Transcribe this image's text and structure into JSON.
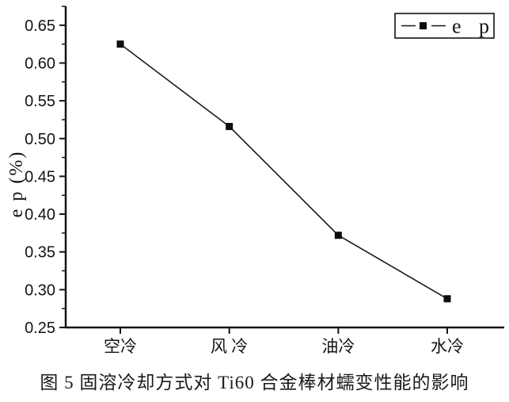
{
  "figure": {
    "caption": "图 5 固溶冷却方式对 Ti60 合金棒材蠕变性能的影响"
  },
  "chart_data": {
    "type": "line",
    "title": "",
    "categories": [
      "空冷",
      "风 冷",
      "油冷",
      "水冷"
    ],
    "series": [
      {
        "name": "e p",
        "values": [
          0.625,
          0.516,
          0.372,
          0.288
        ],
        "marker": "filled-square",
        "color": "#1c1c1c"
      }
    ],
    "xlabel": "",
    "ylabel": "e p (%)",
    "ylim": [
      0.25,
      0.675
    ],
    "yticks": [
      0.25,
      0.3,
      0.35,
      0.4,
      0.45,
      0.5,
      0.55,
      0.6,
      0.65
    ],
    "ytick_decimals": 2,
    "yminor_offset": 0.025,
    "grid": false,
    "legend": {
      "label": "e p",
      "position": "top-right",
      "marker": "filled-square"
    },
    "axis_color": "#141414",
    "background": "#ffffff"
  }
}
